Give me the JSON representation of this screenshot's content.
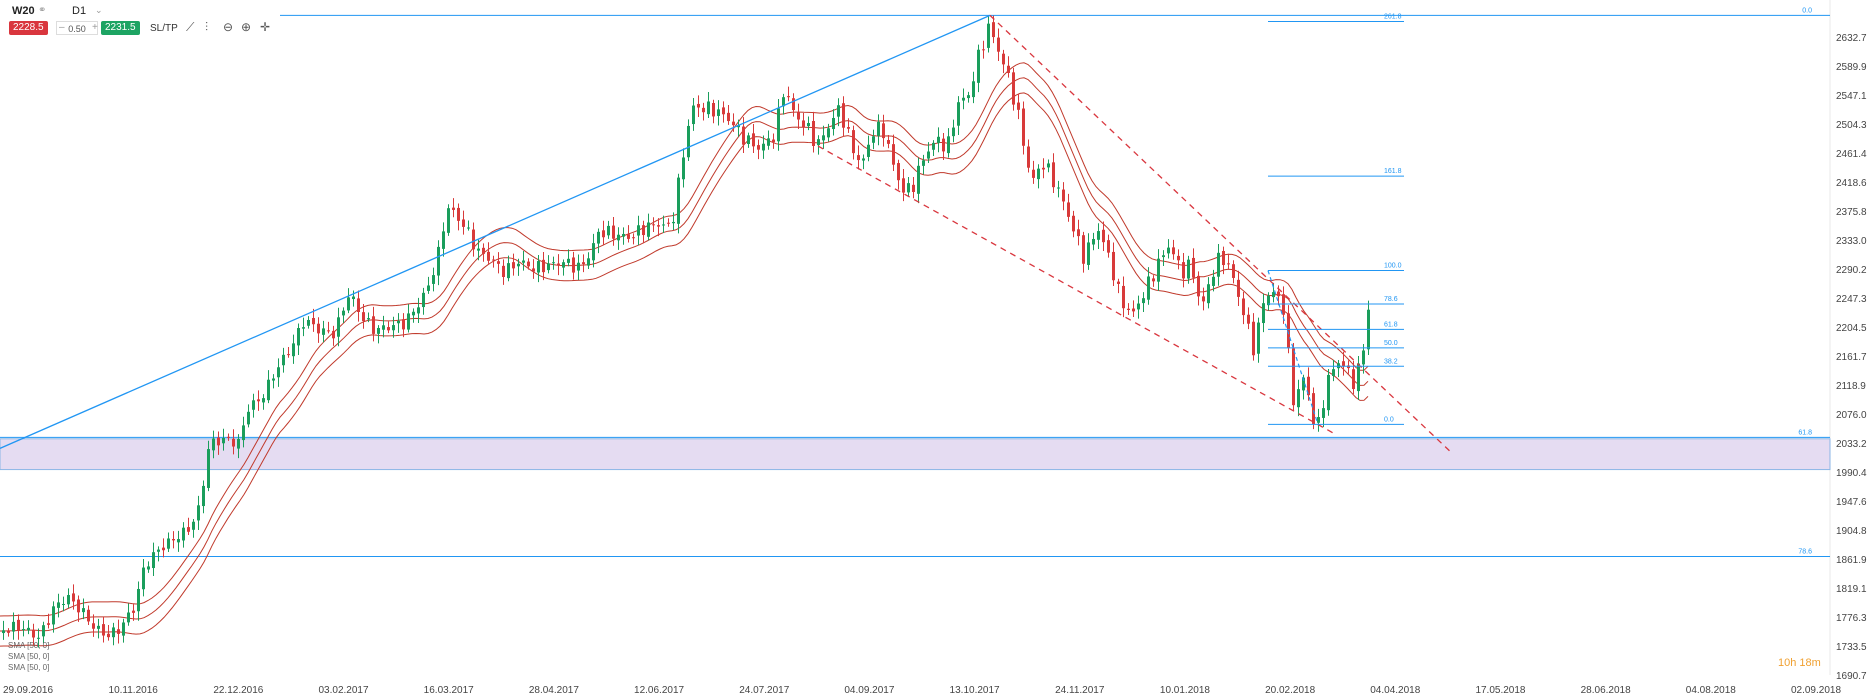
{
  "toolbar": {
    "symbol": "W20",
    "timeframe": "D1",
    "sell_price": "2228.5",
    "spread": "0.50",
    "buy_price": "2231.5",
    "sltp_label": "SL/TP",
    "icons": [
      "line-chart-icon",
      "indicators-icon",
      "zoom-out-icon",
      "zoom-in-icon",
      "crosshair-icon"
    ]
  },
  "legend": [
    "SMA [50, 0]",
    "SMA [50, 0]",
    "SMA [50, 0]"
  ],
  "timer": "10h 18m",
  "colors": {
    "up_candle": "#1a9e5c",
    "down_candle": "#d83a3a",
    "blue_line": "#2196f3",
    "ma_line": "#c0392b",
    "zone_fill": "#e5dcf2",
    "zone_border": "#8bb6e6"
  },
  "chart_data": {
    "type": "candlestick",
    "instrument": "W20",
    "timeframe": "D1",
    "y_ticks": [
      "2632.7",
      "2589.9",
      "2547.1",
      "2504.3",
      "2461.4",
      "2418.6",
      "2375.8",
      "2333.0",
      "2290.2",
      "2247.3",
      "2204.5",
      "2161.7",
      "2118.9",
      "2076.0",
      "2033.2",
      "1990.4",
      "1947.6",
      "1904.8",
      "1861.9",
      "1819.1",
      "1776.3",
      "1733.5",
      "1690.7"
    ],
    "ylim": [
      1690.7,
      2657
    ],
    "x_ticks": [
      "29.09.2016",
      "10.11.2016",
      "22.12.2016",
      "03.02.2017",
      "16.03.2017",
      "28.04.2017",
      "12.06.2017",
      "24.07.2017",
      "04.09.2017",
      "13.10.2017",
      "24.11.2017",
      "10.01.2018",
      "20.02.2018",
      "04.04.2018",
      "17.05.2018",
      "28.06.2018",
      "04.08.2018",
      "02.09.2018"
    ],
    "price_path": [
      [
        0,
        1755
      ],
      [
        20,
        1762
      ],
      [
        40,
        1745
      ],
      [
        55,
        1790
      ],
      [
        68,
        1805
      ],
      [
        82,
        1785
      ],
      [
        95,
        1760
      ],
      [
        108,
        1748
      ],
      [
        120,
        1758
      ],
      [
        135,
        1790
      ],
      [
        145,
        1850
      ],
      [
        160,
        1875
      ],
      [
        175,
        1890
      ],
      [
        190,
        1905
      ],
      [
        200,
        1935
      ],
      [
        210,
        2030
      ],
      [
        225,
        2035
      ],
      [
        240,
        2030
      ],
      [
        248,
        2080
      ],
      [
        262,
        2095
      ],
      [
        278,
        2140
      ],
      [
        292,
        2170
      ],
      [
        305,
        2210
      ],
      [
        320,
        2195
      ],
      [
        335,
        2190
      ],
      [
        350,
        2250
      ],
      [
        362,
        2215
      ],
      [
        375,
        2195
      ],
      [
        390,
        2200
      ],
      [
        405,
        2205
      ],
      [
        418,
        2230
      ],
      [
        428,
        2255
      ],
      [
        438,
        2300
      ],
      [
        448,
        2375
      ],
      [
        458,
        2360
      ],
      [
        468,
        2340
      ],
      [
        478,
        2310
      ],
      [
        490,
        2300
      ],
      [
        505,
        2280
      ],
      [
        520,
        2295
      ],
      [
        535,
        2285
      ],
      [
        550,
        2290
      ],
      [
        565,
        2295
      ],
      [
        580,
        2285
      ],
      [
        590,
        2305
      ],
      [
        600,
        2340
      ],
      [
        615,
        2335
      ],
      [
        630,
        2330
      ],
      [
        645,
        2345
      ],
      [
        660,
        2350
      ],
      [
        672,
        2345
      ],
      [
        682,
        2435
      ],
      [
        692,
        2520
      ],
      [
        705,
        2520
      ],
      [
        718,
        2515
      ],
      [
        732,
        2500
      ],
      [
        745,
        2475
      ],
      [
        760,
        2460
      ],
      [
        775,
        2480
      ],
      [
        785,
        2550
      ],
      [
        795,
        2510
      ],
      [
        808,
        2490
      ],
      [
        818,
        2465
      ],
      [
        830,
        2495
      ],
      [
        840,
        2520
      ],
      [
        852,
        2465
      ],
      [
        862,
        2435
      ],
      [
        875,
        2490
      ],
      [
        885,
        2485
      ],
      [
        895,
        2430
      ],
      [
        905,
        2395
      ],
      [
        915,
        2410
      ],
      [
        925,
        2450
      ],
      [
        938,
        2475
      ],
      [
        948,
        2460
      ],
      [
        958,
        2525
      ],
      [
        970,
        2540
      ],
      [
        980,
        2600
      ],
      [
        990,
        2640
      ],
      [
        1000,
        2600
      ],
      [
        1010,
        2560
      ],
      [
        1020,
        2500
      ],
      [
        1032,
        2410
      ],
      [
        1043,
        2440
      ],
      [
        1052,
        2420
      ],
      [
        1062,
        2390
      ],
      [
        1072,
        2350
      ],
      [
        1085,
        2300
      ],
      [
        1098,
        2345
      ],
      [
        1110,
        2300
      ],
      [
        1120,
        2245
      ],
      [
        1132,
        2215
      ],
      [
        1145,
        2250
      ],
      [
        1158,
        2290
      ],
      [
        1170,
        2320
      ],
      [
        1182,
        2280
      ],
      [
        1192,
        2290
      ],
      [
        1202,
        2225
      ],
      [
        1212,
        2275
      ],
      [
        1222,
        2305
      ],
      [
        1232,
        2280
      ],
      [
        1243,
        2225
      ],
      [
        1255,
        2165
      ],
      [
        1265,
        2245
      ],
      [
        1275,
        2250
      ],
      [
        1285,
        2225
      ],
      [
        1293,
        2090
      ],
      [
        1300,
        2110
      ],
      [
        1306,
        2130
      ],
      [
        1312,
        2070
      ],
      [
        1318,
        2050
      ],
      [
        1328,
        2120
      ],
      [
        1338,
        2150
      ],
      [
        1346,
        2140
      ],
      [
        1354,
        2120
      ],
      [
        1362,
        2145
      ],
      [
        1368,
        2220
      ],
      [
        1370,
        2231
      ]
    ],
    "trend_lines": [
      {
        "name": "rising-support",
        "style": "solid",
        "from": [
          0,
          2022
        ],
        "to": [
          990,
          2655
        ]
      },
      {
        "name": "falling-resistance",
        "style": "dashed",
        "from": [
          990,
          2655
        ],
        "to": [
          1452,
          2015
        ]
      },
      {
        "name": "falling-support",
        "style": "dashed",
        "from": [
          818,
          2464
        ],
        "to": [
          1335,
          2043
        ]
      }
    ],
    "horizontal_levels": [
      {
        "value": 2655,
        "label": "0.0"
      },
      {
        "value": 2038,
        "label": "61.8"
      },
      {
        "value": 1864,
        "label": "78.6"
      }
    ],
    "support_zone": [
      1991,
      2036
    ],
    "fib_retracement": {
      "x_range": [
        1268,
        1404
      ],
      "levels": [
        {
          "label": "261.8",
          "value": 2646
        },
        {
          "label": "161.8",
          "value": 2420
        },
        {
          "label": "100.0",
          "value": 2282
        },
        {
          "label": "78.6",
          "value": 2233
        },
        {
          "label": "61.8",
          "value": 2196
        },
        {
          "label": "50.0",
          "value": 2169
        },
        {
          "label": "38.2",
          "value": 2142
        },
        {
          "label": "0.0",
          "value": 2057
        }
      ]
    },
    "moving_averages": [
      {
        "name": "SMA [50, 0]",
        "offset": 22
      },
      {
        "name": "SMA [50, 0]",
        "offset": 0
      },
      {
        "name": "SMA [50, 0]",
        "offset": -22
      }
    ]
  }
}
